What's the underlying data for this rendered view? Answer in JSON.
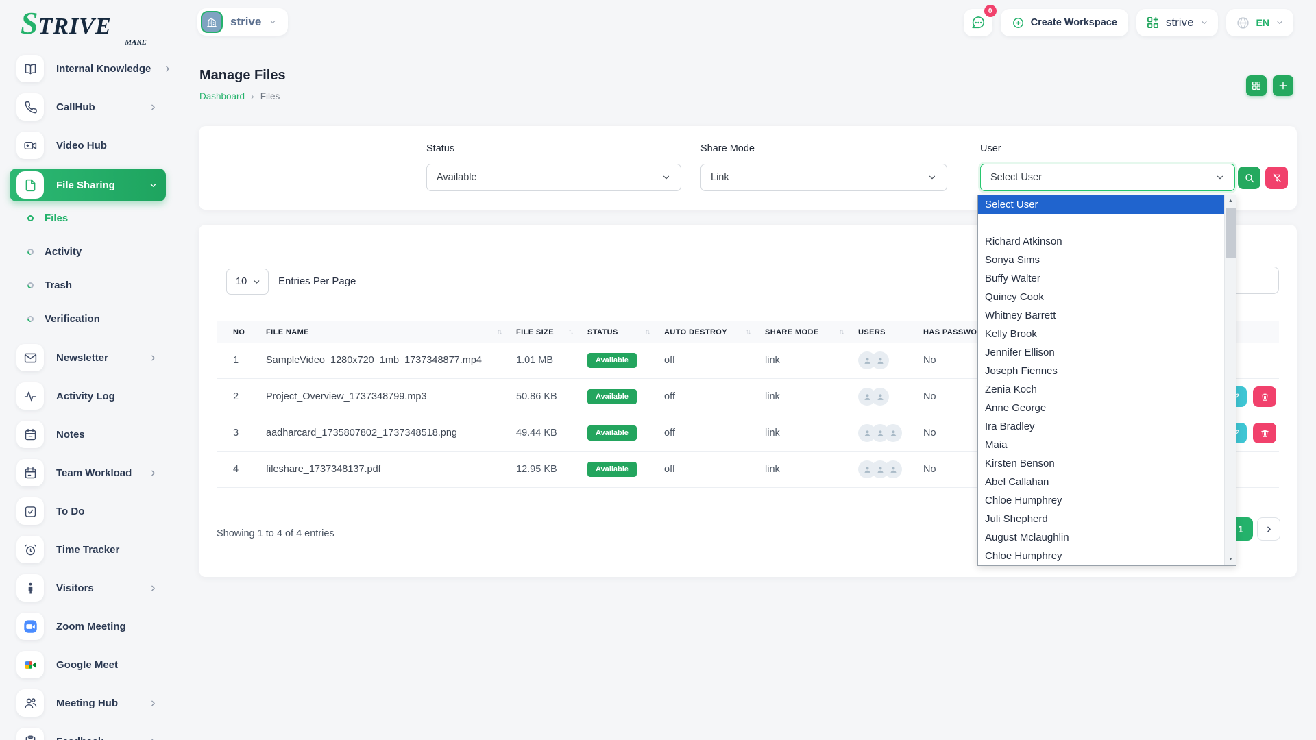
{
  "brand": {
    "initial": "S",
    "rest": "TRIVE",
    "tagline": "MAKE"
  },
  "colors": {
    "primary_green": "#24b26b",
    "button_green": "#25a95f",
    "badge_green": "#23a55e",
    "edit_teal": "#3fc6d4",
    "delete_pink": "#f1416c",
    "highlight_blue": "#2064ce"
  },
  "topbar": {
    "workspace": {
      "name": "strive"
    },
    "chat": {
      "badge": "0"
    },
    "create_workspace_label": "Create Workspace",
    "switcher": {
      "name": "strive"
    },
    "language": {
      "code": "EN"
    }
  },
  "sidebar": {
    "items": [
      {
        "label": "Internal Knowledge",
        "icon": "book-icon",
        "chevron": true
      },
      {
        "label": "CallHub",
        "icon": "phone-icon",
        "chevron": true
      },
      {
        "label": "Video Hub",
        "icon": "video-icon",
        "chevron": false
      },
      {
        "label": "File Sharing",
        "icon": "file-icon",
        "chevron": true,
        "active": true,
        "children": [
          {
            "label": "Files",
            "active": true
          },
          {
            "label": "Activity"
          },
          {
            "label": "Trash"
          },
          {
            "label": "Verification"
          }
        ]
      },
      {
        "label": "Newsletter",
        "icon": "mail-icon",
        "chevron": true
      },
      {
        "label": "Activity Log",
        "icon": "pulse-icon",
        "chevron": false
      },
      {
        "label": "Notes",
        "icon": "calendar-icon",
        "chevron": false
      },
      {
        "label": "Team Workload",
        "icon": "calendar-check-icon",
        "chevron": true
      },
      {
        "label": "To Do",
        "icon": "check-square-icon",
        "chevron": false
      },
      {
        "label": "Time Tracker",
        "icon": "alarm-icon",
        "chevron": false
      },
      {
        "label": "Visitors",
        "icon": "person-icon",
        "chevron": true
      },
      {
        "label": "Zoom Meeting",
        "icon": "zoom-icon",
        "chevron": false
      },
      {
        "label": "Google Meet",
        "icon": "google-meet-icon",
        "chevron": false
      },
      {
        "label": "Meeting Hub",
        "icon": "people-icon",
        "chevron": true
      },
      {
        "label": "Feedback",
        "icon": "clipboard-icon",
        "chevron": true
      }
    ]
  },
  "page": {
    "title": "Manage Files",
    "breadcrumb": {
      "home": "Dashboard",
      "separator": "›",
      "current": "Files"
    }
  },
  "filters": {
    "status": {
      "label": "Status",
      "value": "Available"
    },
    "share_mode": {
      "label": "Share Mode",
      "value": "Link"
    },
    "user": {
      "label": "User",
      "value": "Select User"
    }
  },
  "user_dropdown": {
    "highlighted": "Select User",
    "options": [
      "Select User",
      "",
      "Richard Atkinson",
      "Sonya Sims",
      "Buffy Walter",
      "Quincy Cook",
      "Whitney Barrett",
      "Kelly Brook",
      "Jennifer Ellison",
      "Joseph Fiennes",
      "Zenia Koch",
      "Anne George",
      "Ira Bradley",
      "Maia",
      "Kirsten Benson",
      "Abel Callahan",
      "Chloe Humphrey",
      "Juli Shepherd",
      "August Mclaughlin",
      "Chloe Humphrey"
    ]
  },
  "table": {
    "entries_per_page": "10",
    "entries_per_page_label": "Entries Per Page",
    "search_value": "",
    "sort_glyph": "↑↓",
    "columns": [
      {
        "label": "NO",
        "sortable": false
      },
      {
        "label": "FILE NAME",
        "sortable": true
      },
      {
        "label": "FILE SIZE",
        "sortable": true
      },
      {
        "label": "STATUS",
        "sortable": true
      },
      {
        "label": "AUTO DESTROY",
        "sortable": true
      },
      {
        "label": "SHARE MODE",
        "sortable": true
      },
      {
        "label": "USERS",
        "sortable": false
      },
      {
        "label": "HAS PASSWORD",
        "sortable": true
      }
    ],
    "rows": [
      {
        "no": "1",
        "file_name": "SampleVideo_1280x720_1mb_1737348877.mp4",
        "file_size": "1.01 MB",
        "status": "Available",
        "auto_destroy": "off",
        "share_mode": "link",
        "users": 2,
        "has_password": "No",
        "actions_visible": false
      },
      {
        "no": "2",
        "file_name": "Project_Overview_1737348799.mp3",
        "file_size": "50.86 KB",
        "status": "Available",
        "auto_destroy": "off",
        "share_mode": "link",
        "users": 2,
        "has_password": "No",
        "actions_visible": true
      },
      {
        "no": "3",
        "file_name": "aadharcard_1735807802_1737348518.png",
        "file_size": "49.44 KB",
        "status": "Available",
        "auto_destroy": "off",
        "share_mode": "link",
        "users": 3,
        "has_password": "No",
        "actions_visible": true
      },
      {
        "no": "4",
        "file_name": "fileshare_1737348137.pdf",
        "file_size": "12.95 KB",
        "status": "Available",
        "auto_destroy": "off",
        "share_mode": "link",
        "users": 3,
        "has_password": "No",
        "actions_visible": false
      }
    ],
    "summary": "Showing 1 to 4 of 4 entries",
    "pagination": {
      "page": "1"
    }
  }
}
